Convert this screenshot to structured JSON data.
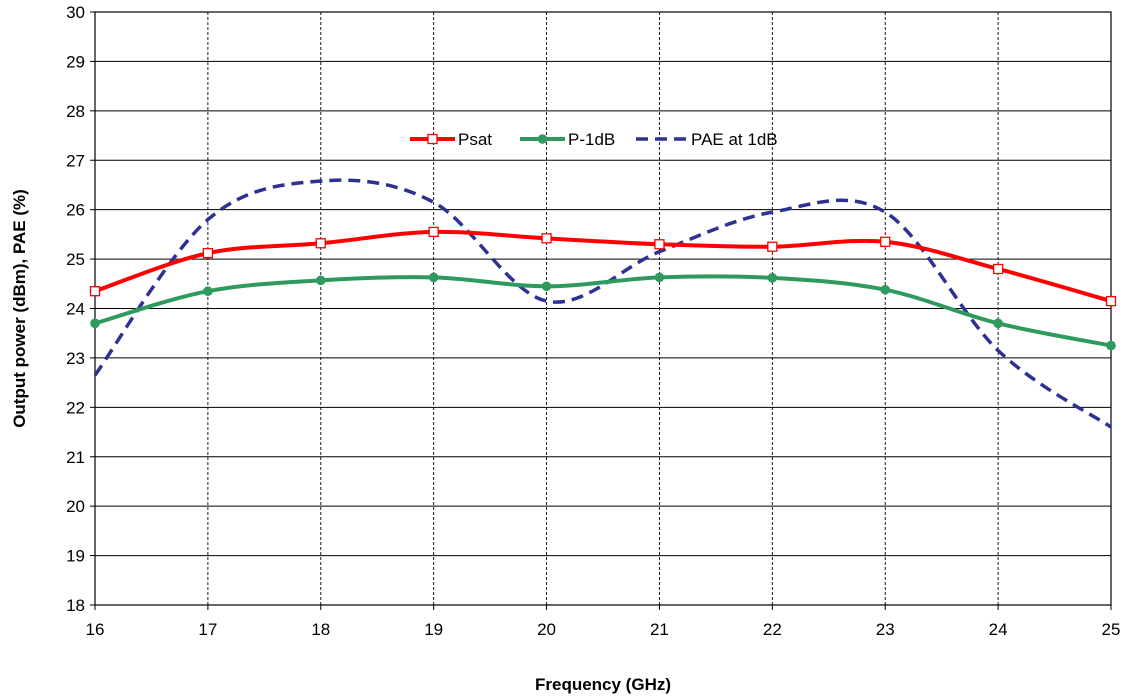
{
  "chart_data": {
    "type": "line",
    "title": "",
    "xlabel": "Frequency (GHz)",
    "ylabel": "Output power (dBm), PAE (%)",
    "xlim": [
      16,
      25
    ],
    "ylim": [
      18,
      30
    ],
    "x_ticks": [
      16,
      17,
      18,
      19,
      20,
      21,
      22,
      23,
      24,
      25
    ],
    "y_ticks": [
      18,
      19,
      20,
      21,
      22,
      23,
      24,
      25,
      26,
      27,
      28,
      29,
      30
    ],
    "grid": {
      "horizontal": "solid",
      "vertical": "dashed"
    },
    "legend_position": "top-center",
    "x": [
      16,
      17,
      18,
      19,
      20,
      21,
      22,
      23,
      24,
      25
    ],
    "series": [
      {
        "name": "Psat",
        "color": "#ff0000",
        "marker": "hollow-square",
        "line": "solid",
        "values": [
          24.35,
          25.12,
          25.32,
          25.55,
          25.42,
          25.3,
          25.25,
          25.35,
          24.8,
          24.15
        ]
      },
      {
        "name": "P-1dB",
        "color": "#2e9a5e",
        "marker": "filled-circle",
        "line": "solid",
        "values": [
          23.7,
          24.35,
          24.57,
          24.63,
          24.45,
          24.63,
          24.62,
          24.38,
          23.7,
          23.25
        ]
      },
      {
        "name": "PAE at 1dB",
        "color": "#2e3192",
        "marker": "none",
        "line": "dashed",
        "values": [
          22.65,
          25.8,
          26.58,
          26.15,
          24.15,
          25.15,
          25.95,
          25.95,
          23.15,
          21.6
        ]
      }
    ]
  }
}
